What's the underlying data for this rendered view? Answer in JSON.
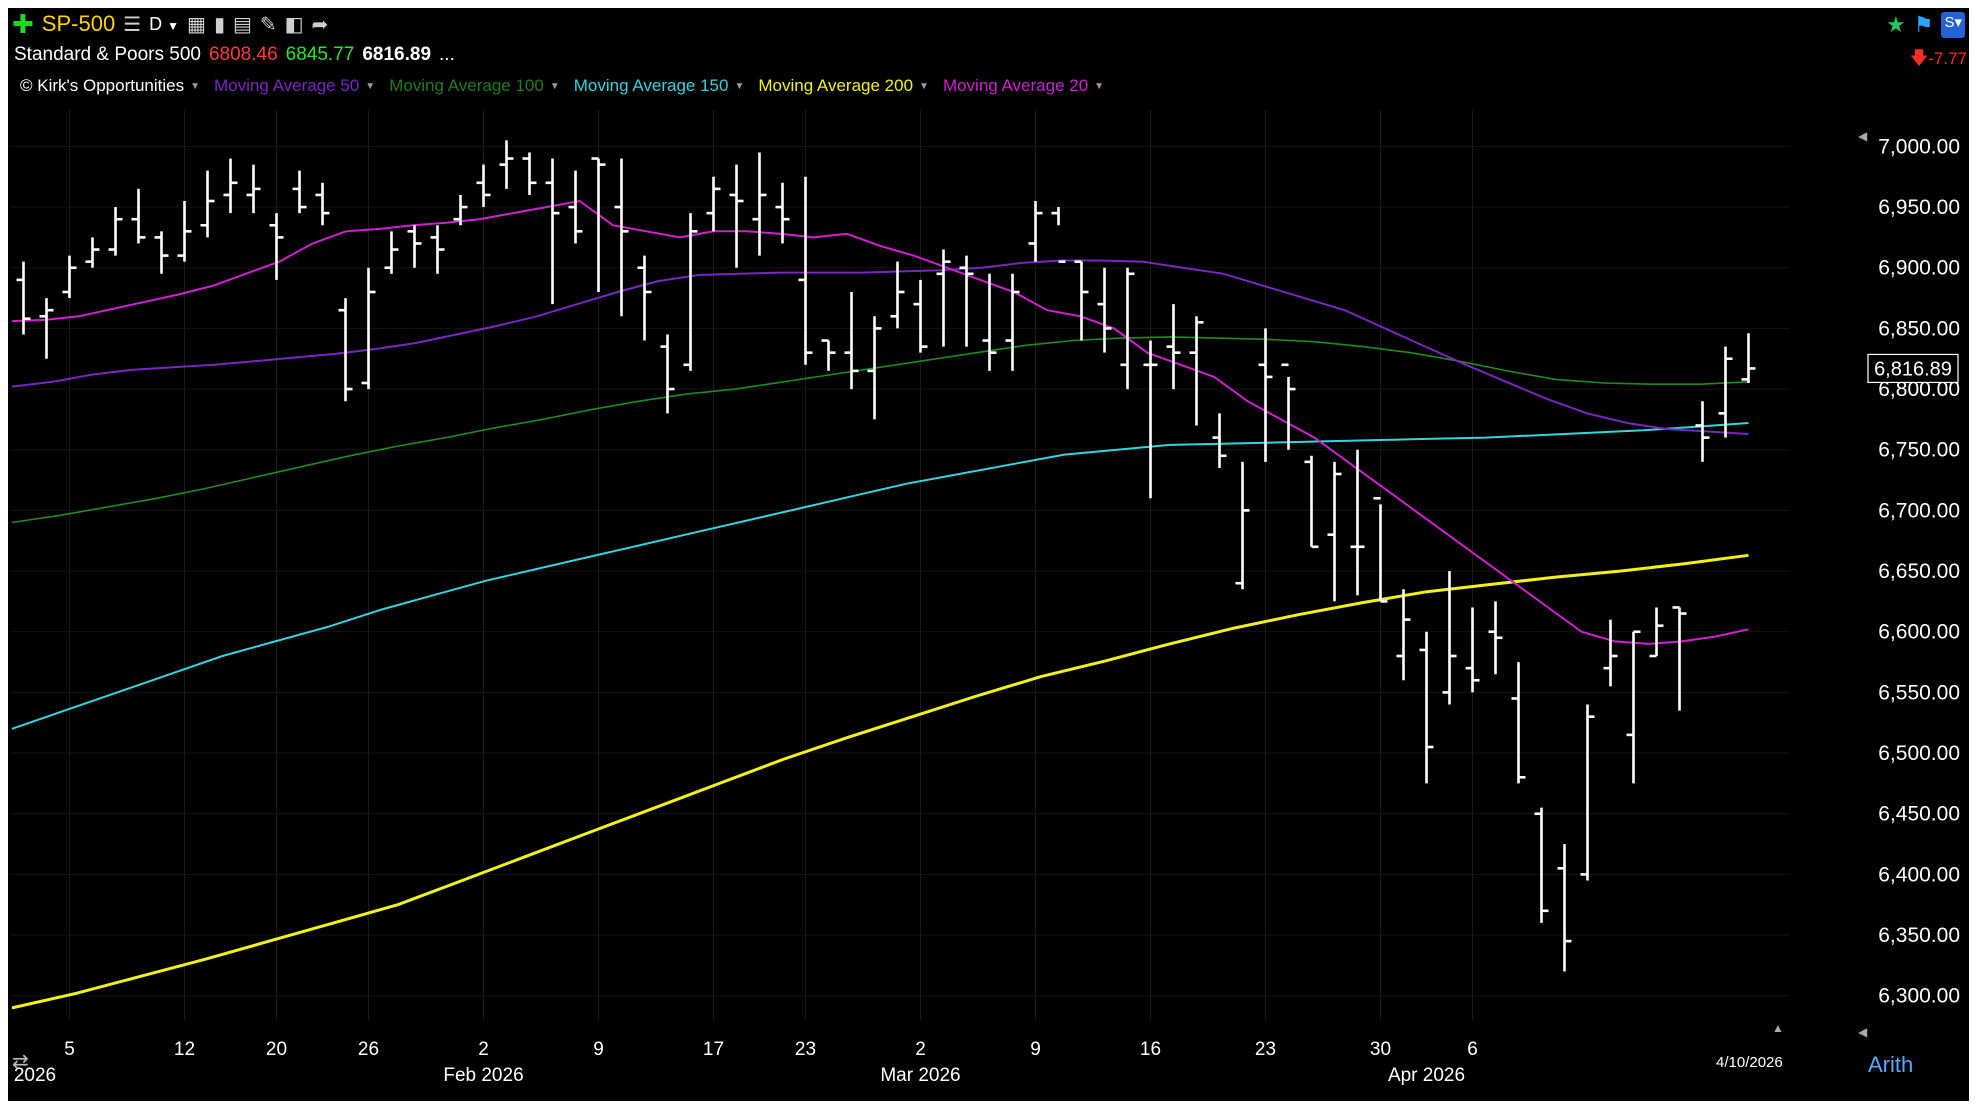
{
  "header": {
    "symbol": "SP-500",
    "period": "D",
    "name": "Standard & Poors 500",
    "open": "6808.46",
    "high": "6845.77",
    "close": "6816.89",
    "ellipsis": "...",
    "change": "-7.77"
  },
  "legend": [
    {
      "label": "© Kirk's Opportunities",
      "color": "#ffffff"
    },
    {
      "label": "Moving Average 50",
      "color": "#7a27c2"
    },
    {
      "label": "Moving Average 100",
      "color": "#1e7d1e"
    },
    {
      "label": "Moving Average 150",
      "color": "#35d4e0"
    },
    {
      "label": "Moving Average 200",
      "color": "#f2f21a"
    },
    {
      "label": "Moving Average 20",
      "color": "#d21fd2"
    }
  ],
  "footer": {
    "scale": "Arith",
    "date": "4/10/2026",
    "left_year": "2026"
  },
  "chart_data": {
    "type": "ohlc",
    "ylim": [
      6280,
      7030
    ],
    "yticks": [
      6300,
      6350,
      6400,
      6450,
      6500,
      6550,
      6600,
      6650,
      6700,
      6750,
      6800,
      6850,
      6900,
      6950,
      7000
    ],
    "ytick_labels": [
      "6,300.00",
      "6,350.00",
      "6,400.00",
      "6,450.00",
      "6,500.00",
      "6,550.00",
      "6,600.00",
      "6,650.00",
      "6,700.00",
      "6,750.00",
      "6,800.00",
      "6,850.00",
      "6,900.00",
      "6,950.00",
      "7,000.00"
    ],
    "last_value": "6,816.89",
    "x_ticks": [
      {
        "label": "5",
        "idx": 2
      },
      {
        "label": "12",
        "idx": 7
      },
      {
        "label": "20",
        "idx": 11
      },
      {
        "label": "26",
        "idx": 15
      },
      {
        "label": "2",
        "idx": 20
      },
      {
        "label": "9",
        "idx": 25
      },
      {
        "label": "17",
        "idx": 30
      },
      {
        "label": "23",
        "idx": 34
      },
      {
        "label": "2",
        "idx": 39
      },
      {
        "label": "9",
        "idx": 44
      },
      {
        "label": "16",
        "idx": 49
      },
      {
        "label": "23",
        "idx": 54
      },
      {
        "label": "30",
        "idx": 59
      },
      {
        "label": "6",
        "idx": 63
      }
    ],
    "month_labels": [
      {
        "label": "2026",
        "idx": 0.5
      },
      {
        "label": "Feb 2026",
        "idx": 20
      },
      {
        "label": "Mar 2026",
        "idx": 39
      },
      {
        "label": "Apr 2026",
        "idx": 61
      }
    ],
    "bars": [
      [
        6890,
        6905,
        6845,
        6858
      ],
      [
        6860,
        6875,
        6825,
        6865
      ],
      [
        6880,
        6910,
        6875,
        6900
      ],
      [
        6905,
        6925,
        6900,
        6915
      ],
      [
        6915,
        6950,
        6910,
        6940
      ],
      [
        6940,
        6965,
        6920,
        6925
      ],
      [
        6925,
        6930,
        6895,
        6910
      ],
      [
        6910,
        6955,
        6905,
        6930
      ],
      [
        6935,
        6980,
        6925,
        6955
      ],
      [
        6960,
        6990,
        6945,
        6970
      ],
      [
        6960,
        6985,
        6945,
        6965
      ],
      [
        6935,
        6945,
        6890,
        6925
      ],
      [
        6965,
        6980,
        6945,
        6950
      ],
      [
        6960,
        6970,
        6935,
        6945
      ],
      [
        6865,
        6875,
        6790,
        6800
      ],
      [
        6805,
        6900,
        6800,
        6880
      ],
      [
        6900,
        6930,
        6895,
        6915
      ],
      [
        6930,
        6935,
        6900,
        6920
      ],
      [
        6925,
        6935,
        6895,
        6915
      ],
      [
        6940,
        6960,
        6935,
        6950
      ],
      [
        6970,
        6985,
        6950,
        6960
      ],
      [
        6985,
        7005,
        6965,
        6990
      ],
      [
        6990,
        6995,
        6960,
        6970
      ],
      [
        6970,
        6990,
        6870,
        6945
      ],
      [
        6950,
        6980,
        6920,
        6930
      ],
      [
        6990,
        6990,
        6880,
        6985
      ],
      [
        6950,
        6990,
        6860,
        6930
      ],
      [
        6900,
        6910,
        6840,
        6880
      ],
      [
        6835,
        6845,
        6780,
        6800
      ],
      [
        6820,
        6945,
        6815,
        6930
      ],
      [
        6945,
        6975,
        6930,
        6965
      ],
      [
        6960,
        6985,
        6900,
        6955
      ],
      [
        6940,
        6995,
        6910,
        6960
      ],
      [
        6950,
        6970,
        6920,
        6940
      ],
      [
        6890,
        6975,
        6820,
        6830
      ],
      [
        6840,
        6840,
        6815,
        6830
      ],
      [
        6830,
        6880,
        6800,
        6815
      ],
      [
        6815,
        6860,
        6775,
        6850
      ],
      [
        6860,
        6905,
        6850,
        6880
      ],
      [
        6870,
        6890,
        6830,
        6835
      ],
      [
        6895,
        6915,
        6835,
        6905
      ],
      [
        6900,
        6910,
        6835,
        6895
      ],
      [
        6840,
        6895,
        6815,
        6830
      ],
      [
        6840,
        6895,
        6815,
        6880
      ],
      [
        6920,
        6955,
        6905,
        6945
      ],
      [
        6945,
        6950,
        6935,
        6905
      ],
      [
        6905,
        6905,
        6840,
        6880
      ],
      [
        6870,
        6900,
        6830,
        6850
      ],
      [
        6820,
        6900,
        6800,
        6895
      ],
      [
        6820,
        6840,
        6710,
        6820
      ],
      [
        6835,
        6870,
        6800,
        6830
      ],
      [
        6830,
        6860,
        6770,
        6855
      ],
      [
        6760,
        6780,
        6735,
        6745
      ],
      [
        6640,
        6740,
        6635,
        6700
      ],
      [
        6820,
        6850,
        6740,
        6810
      ],
      [
        6820,
        6810,
        6750,
        6800
      ],
      [
        6740,
        6745,
        6670,
        6670
      ],
      [
        6680,
        6740,
        6625,
        6730
      ],
      [
        6670,
        6750,
        6630,
        6670
      ],
      [
        6710,
        6705,
        6625,
        6625
      ],
      [
        6580,
        6635,
        6560,
        6610
      ],
      [
        6585,
        6600,
        6475,
        6505
      ],
      [
        6550,
        6650,
        6540,
        6580
      ],
      [
        6570,
        6620,
        6550,
        6560
      ],
      [
        6600,
        6625,
        6565,
        6595
      ],
      [
        6545,
        6575,
        6475,
        6480
      ],
      [
        6450,
        6455,
        6360,
        6370
      ],
      [
        6405,
        6425,
        6320,
        6345
      ],
      [
        6400,
        6540,
        6395,
        6530
      ],
      [
        6570,
        6610,
        6555,
        6580
      ],
      [
        6515,
        6600,
        6475,
        6600
      ],
      [
        6580,
        6620,
        6580,
        6605
      ],
      [
        6620,
        6620,
        6535,
        6615
      ],
      [
        6770,
        6790,
        6740,
        6760
      ],
      [
        6780,
        6835,
        6760,
        6825
      ],
      [
        6808,
        6846,
        6805,
        6817
      ]
    ],
    "ma20": [
      6856,
      6857,
      6860,
      6866,
      6872,
      6878,
      6885,
      6895,
      6905,
      6920,
      6930,
      6932,
      6935,
      6937,
      6940,
      6945,
      6950,
      6955,
      6935,
      6930,
      6925,
      6930,
      6930,
      6928,
      6925,
      6928,
      6918,
      6910,
      6900,
      6890,
      6880,
      6865,
      6860,
      6850,
      6830,
      6820,
      6810,
      6790,
      6775,
      6760,
      6740,
      6720,
      6700,
      6680,
      6660,
      6640,
      6620,
      6600,
      6592,
      6590,
      6592,
      6596,
      6602
    ],
    "ma50": [
      6802,
      6806,
      6812,
      6816,
      6818,
      6820,
      6823,
      6826,
      6829,
      6833,
      6838,
      6845,
      6852,
      6860,
      6870,
      6880,
      6889,
      6894,
      6895,
      6896,
      6896,
      6896,
      6897,
      6898,
      6900,
      6904,
      6906,
      6906,
      6905,
      6900,
      6895,
      6885,
      6875,
      6865,
      6850,
      6835,
      6820,
      6806,
      6792,
      6780,
      6772,
      6767,
      6765,
      6763
    ],
    "ma100": [
      6690,
      6696,
      6703,
      6710,
      6718,
      6727,
      6736,
      6745,
      6753,
      6760,
      6768,
      6775,
      6783,
      6790,
      6796,
      6800,
      6806,
      6812,
      6818,
      6824,
      6830,
      6836,
      6840,
      6842,
      6843,
      6842,
      6841,
      6839,
      6835,
      6830,
      6823,
      6815,
      6808,
      6805,
      6804,
      6804,
      6806
    ],
    "ma150": [
      6520,
      6535,
      6550,
      6565,
      6580,
      6592,
      6604,
      6618,
      6630,
      6642,
      6652,
      6662,
      6672,
      6682,
      6692,
      6702,
      6712,
      6722,
      6730,
      6738,
      6746,
      6750,
      6754,
      6755,
      6756,
      6757,
      6758,
      6759,
      6760,
      6762,
      6764,
      6766,
      6769,
      6772
    ],
    "ma200": [
      6290,
      6302,
      6316,
      6330,
      6345,
      6360,
      6375,
      6395,
      6415,
      6435,
      6455,
      6475,
      6495,
      6513,
      6530,
      6547,
      6563,
      6576,
      6590,
      6603,
      6614,
      6624,
      6633,
      6639,
      6645,
      6650,
      6656,
      6663
    ]
  }
}
